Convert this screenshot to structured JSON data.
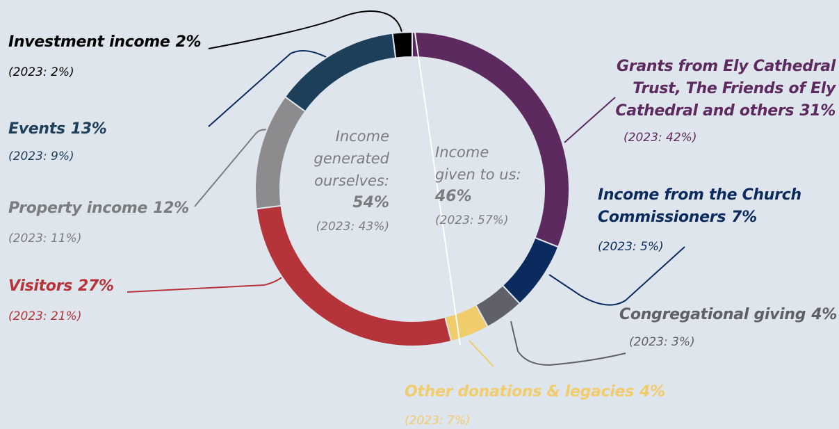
{
  "chart_data": {
    "type": "donut",
    "categories": [
      "Grants from Ely Cathedral Trust, The Friends of Ely Cathedral and others",
      "Income from the Church Commissioners",
      "Congregational giving",
      "Other donations & legacies",
      "Visitors",
      "Property income",
      "Events",
      "Investment income"
    ],
    "values": [
      31,
      7,
      4,
      4,
      27,
      12,
      13,
      2
    ],
    "value_labels": [
      "31%",
      "7%",
      "4%",
      "4%",
      "27%",
      "12%",
      "13%",
      "2%"
    ],
    "prior_year_labels": [
      "(2023: 42%)",
      "(2023: 5%)",
      "(2023: 3%)",
      "(2023: 7%)",
      "(2023: 21%)",
      "(2023: 11%)",
      "(2023: 9%)",
      "(2023: 2%)"
    ],
    "colors": [
      "#5c2a5e",
      "#0b2b5e",
      "#5f6068",
      "#f0cc6a",
      "#b5343a",
      "#8c8c8e",
      "#1e3f5a",
      "#000000"
    ],
    "center_labels": [
      {
        "lines": [
          "Income",
          "generated",
          "ourselves:"
        ],
        "value": 54,
        "value_label": "54%",
        "prior_label": "(2023: 43%)"
      },
      {
        "lines": [
          "Income",
          "given to us:"
        ],
        "value": 46,
        "value_label": "46%",
        "prior_label": "(2023: 57%)"
      }
    ]
  }
}
